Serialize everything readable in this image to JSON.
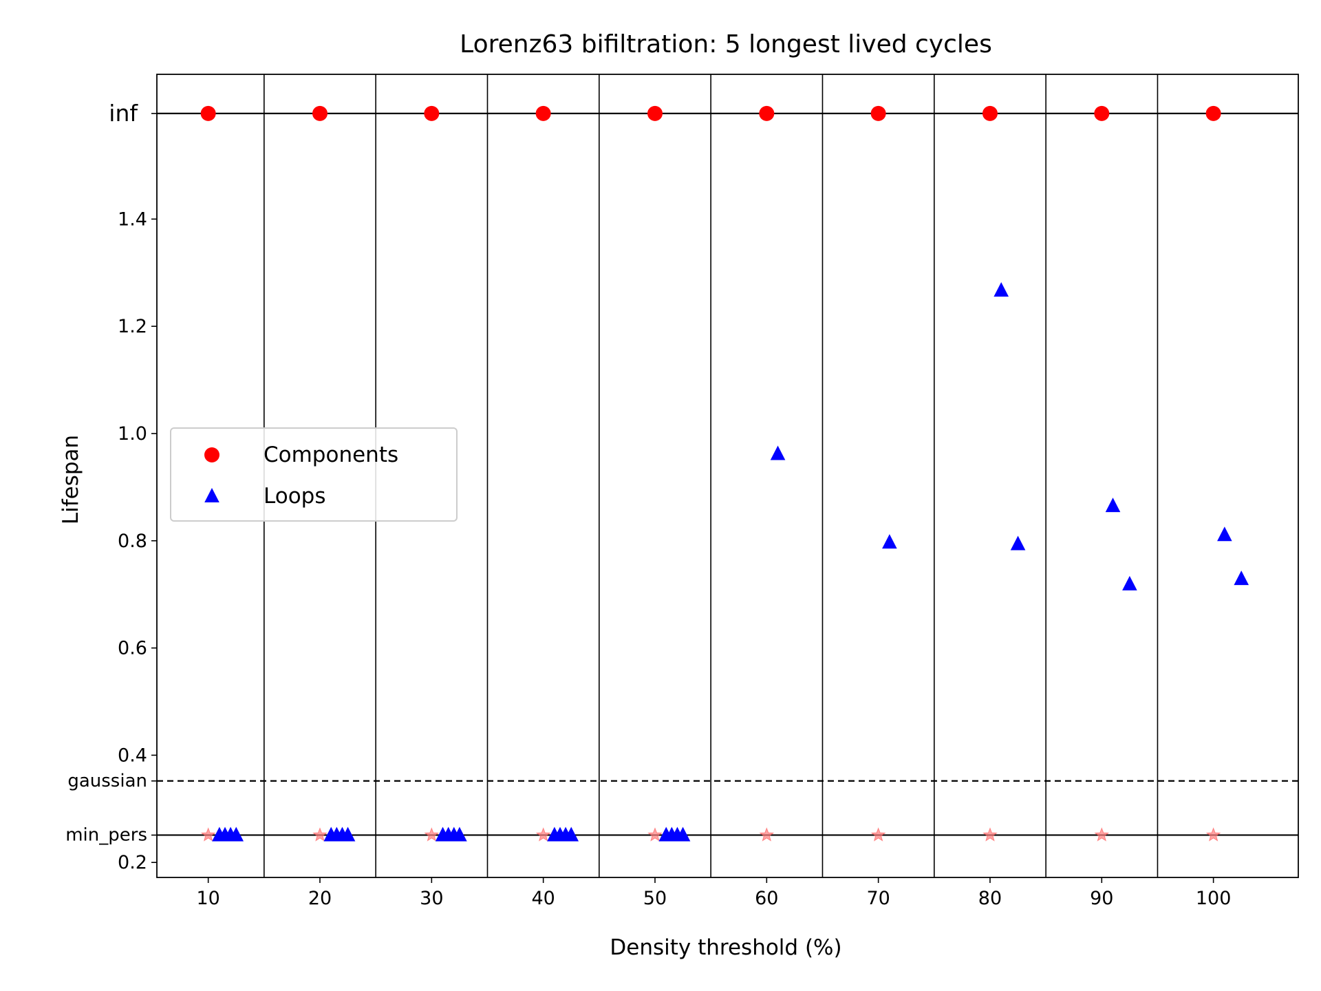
{
  "chart_data": {
    "type": "scatter",
    "title": "Lorenz63 bifiltration: 5 longest lived cycles",
    "xlabel": "Density threshold (%)",
    "ylabel": "Lifespan",
    "xlim": [
      5.4,
      107.6
    ],
    "ylim": [
      0.172,
      1.67
    ],
    "x_ticks": [
      10,
      20,
      30,
      40,
      50,
      60,
      70,
      80,
      90,
      100
    ],
    "x_tick_labels": [
      "10",
      "20",
      "30",
      "40",
      "50",
      "60",
      "70",
      "80",
      "90",
      "100"
    ],
    "y_ticks": [
      0.2,
      0.4,
      0.6,
      0.8,
      1.0,
      1.2,
      1.4
    ],
    "y_tick_labels": [
      "0.2",
      "0.4",
      "0.6",
      "0.8",
      "1.0",
      "1.2",
      "1.4"
    ],
    "separators": [
      15,
      25,
      35,
      45,
      55,
      65,
      75,
      85,
      95
    ],
    "reference_lines": [
      {
        "name": "inf",
        "label": "inf",
        "y": 1.597,
        "style": "solid"
      },
      {
        "name": "gaussian",
        "label": "gaussian",
        "y": 0.352,
        "style": "dashed"
      },
      {
        "name": "min_pers",
        "label": "min_pers",
        "y": 0.251,
        "style": "solid"
      }
    ],
    "legend": {
      "position": "center-left",
      "entries": [
        "Components",
        "Loops"
      ]
    },
    "series": [
      {
        "name": "Components",
        "marker": "circle",
        "color": "#ff0000",
        "points": [
          [
            10,
            1.597
          ],
          [
            20,
            1.597
          ],
          [
            30,
            1.597
          ],
          [
            40,
            1.597
          ],
          [
            50,
            1.597
          ],
          [
            60,
            1.597
          ],
          [
            70,
            1.597
          ],
          [
            80,
            1.597
          ],
          [
            90,
            1.597
          ],
          [
            100,
            1.597
          ]
        ]
      },
      {
        "name": "Loops",
        "marker": "triangle",
        "color": "#0000ff",
        "points": [
          [
            11,
            0.251
          ],
          [
            11.5,
            0.251
          ],
          [
            12,
            0.251
          ],
          [
            12.5,
            0.251
          ],
          [
            21,
            0.251
          ],
          [
            21.5,
            0.251
          ],
          [
            22,
            0.251
          ],
          [
            22.5,
            0.251
          ],
          [
            31,
            0.251
          ],
          [
            31.5,
            0.251
          ],
          [
            32,
            0.251
          ],
          [
            32.5,
            0.251
          ],
          [
            41,
            0.251
          ],
          [
            41.5,
            0.251
          ],
          [
            42,
            0.251
          ],
          [
            42.5,
            0.251
          ],
          [
            51,
            0.251
          ],
          [
            51.5,
            0.251
          ],
          [
            52,
            0.251
          ],
          [
            52.5,
            0.251
          ],
          [
            61,
            0.962
          ],
          [
            71,
            0.797
          ],
          [
            81,
            1.267
          ],
          [
            82.5,
            0.794
          ],
          [
            91,
            0.865
          ],
          [
            92.5,
            0.719
          ],
          [
            101,
            0.811
          ],
          [
            102.5,
            0.729
          ]
        ]
      },
      {
        "name": "min_pers markers",
        "marker": "star",
        "color": "#ff7f7f",
        "points": [
          [
            10,
            0.251
          ],
          [
            20,
            0.251
          ],
          [
            30,
            0.251
          ],
          [
            40,
            0.251
          ],
          [
            50,
            0.251
          ],
          [
            60,
            0.251
          ],
          [
            70,
            0.251
          ],
          [
            80,
            0.251
          ],
          [
            90,
            0.251
          ],
          [
            100,
            0.251
          ]
        ]
      }
    ]
  }
}
